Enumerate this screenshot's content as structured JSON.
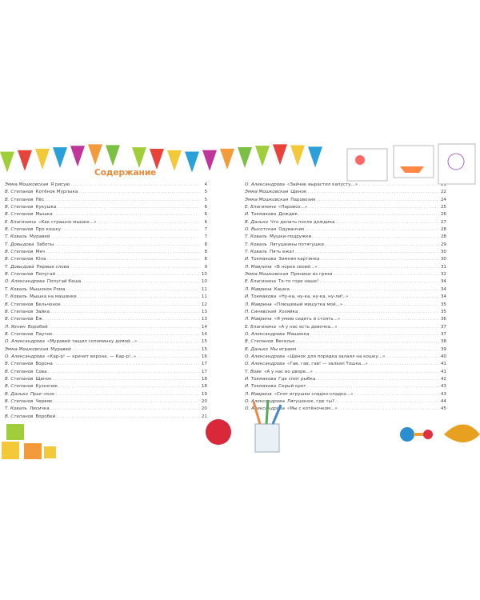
{
  "title": "Содержание",
  "left": [
    {
      "author": "Эмма Мошковская",
      "work": "Я рисую",
      "page": "4"
    },
    {
      "author": "В. Степанов",
      "work": "Котёнок Мурлыка",
      "page": "5"
    },
    {
      "author": "В. Степанов",
      "work": "Пёс",
      "page": "5"
    },
    {
      "author": "В. Степанов",
      "work": "Кукушка",
      "page": "6"
    },
    {
      "author": "В. Степанов",
      "work": "Мышка",
      "page": "6"
    },
    {
      "author": "Е. Благинина",
      "work": "«Как страшно мышке...»",
      "page": "6"
    },
    {
      "author": "В. Степанов",
      "work": "Про кошку",
      "page": "7"
    },
    {
      "author": "Т. Коваль",
      "work": "Муравей",
      "page": "7"
    },
    {
      "author": "Т. Довыдова",
      "work": "Заботы",
      "page": "8"
    },
    {
      "author": "В. Степанов",
      "work": "Мяч",
      "page": "8"
    },
    {
      "author": "В. Степанов",
      "work": "Юла",
      "page": "8"
    },
    {
      "author": "Т. Довыдова",
      "work": "Первые слова",
      "page": "9"
    },
    {
      "author": "В. Степанов",
      "work": "Попугай",
      "page": "10"
    },
    {
      "author": "О. Александрова",
      "work": "Попугай Кеша",
      "page": "10"
    },
    {
      "author": "Т. Коваль",
      "work": "Мышонок Рома",
      "page": "11"
    },
    {
      "author": "Т. Коваль",
      "work": "Мышка на машинке",
      "page": "11"
    },
    {
      "author": "В. Степанов",
      "work": "Бельчонок",
      "page": "12"
    },
    {
      "author": "В. Степанов",
      "work": "Зайка",
      "page": "13"
    },
    {
      "author": "В. Степанов",
      "work": "Ёж",
      "page": "13"
    },
    {
      "author": "Л. Яхнин",
      "work": "Воробей",
      "page": "14"
    },
    {
      "author": "В. Степанов",
      "work": "Паучок",
      "page": "14"
    },
    {
      "author": "О. Александрова",
      "work": "«Муравей тащил соломинку домой...»",
      "page": "15"
    },
    {
      "author": "Эмма Мошковская",
      "work": "Муравей",
      "page": "15"
    },
    {
      "author": "О. Александрова",
      "work": "«Кар-р! — кричит ворона. — Кар-р!..»",
      "page": "16"
    },
    {
      "author": "В. Степанов",
      "work": "Ворона",
      "page": "17"
    },
    {
      "author": "В. Степанов",
      "work": "Сова",
      "page": "17"
    },
    {
      "author": "В. Степанов",
      "work": "Щенок",
      "page": "18"
    },
    {
      "author": "В. Степанов",
      "work": "Кузнечик",
      "page": "18"
    },
    {
      "author": "В. Данько",
      "work": "Прыг-скок",
      "page": "19"
    },
    {
      "author": "В. Степанов",
      "work": "Червяк",
      "page": "20"
    },
    {
      "author": "Т. Коваль",
      "work": "Лисичка",
      "page": "20"
    },
    {
      "author": "В. Степанов",
      "work": "Воробей",
      "page": "21"
    }
  ],
  "right": [
    {
      "author": "О. Александрова",
      "work": "«Зайчик вырастил капусту...»",
      "page": "21"
    },
    {
      "author": "Эмма Мошковская",
      "work": "Щенок",
      "page": "22"
    },
    {
      "author": "Эмма Мошковская",
      "work": "Паровозик",
      "page": "24"
    },
    {
      "author": "Е. Благинина",
      "work": "«Паровоз...»",
      "page": "25"
    },
    {
      "author": "И. Токмакова",
      "work": "Дождик",
      "page": "26"
    },
    {
      "author": "В. Данько",
      "work": "Что делать после дождика",
      "page": "27"
    },
    {
      "author": "О. Высотская",
      "work": "Одуванчик",
      "page": "28"
    },
    {
      "author": "Т. Коваль",
      "work": "Мушки-подружки",
      "page": "28"
    },
    {
      "author": "Т. Коваль",
      "work": "Лягушкины потягушки",
      "page": "29"
    },
    {
      "author": "Т. Коваль",
      "work": "Пять ежат",
      "page": "30"
    },
    {
      "author": "И. Токмакова",
      "work": "Зимняя картинка",
      "page": "30"
    },
    {
      "author": "Л. Мавրина",
      "work": "«В норке своей...»",
      "page": "31"
    },
    {
      "author": "Эмма Мошковская",
      "work": "Пряники из грязи",
      "page": "32"
    },
    {
      "author": "Е. Благинина",
      "work": "То-то горе наше!",
      "page": "34"
    },
    {
      "author": "Л. Маврина",
      "work": "Кашка",
      "page": "34"
    },
    {
      "author": "И. Токмакова",
      "work": "«Ну-ка, ну-ка, ну-ка, ну-ли!..»",
      "page": "34"
    },
    {
      "author": "Л. Маврина",
      "work": "«Плюшевый мишутка мой...»",
      "page": "35"
    },
    {
      "author": "П. Синявский",
      "work": "Хозяйка",
      "page": "35"
    },
    {
      "author": "Л. Маврина",
      "work": "«Я умею сидеть и стоять...»",
      "page": "36"
    },
    {
      "author": "Е. Благинина",
      "work": "«А у нас есть девочка...»",
      "page": "37"
    },
    {
      "author": "О. Александрова",
      "work": "Машинка",
      "page": "37"
    },
    {
      "author": "В. Степанов",
      "work": "Веселье",
      "page": "38"
    },
    {
      "author": "В. Данько",
      "work": "Мы играем",
      "page": "39"
    },
    {
      "author": "О. Александрова",
      "work": "«Щенок для порядка залаял на кошку...»",
      "page": "40"
    },
    {
      "author": "О. Александрова",
      "work": "«Гав, гав, гав! — залаял Тошка...»",
      "page": "41"
    },
    {
      "author": "Т. Вове",
      "work": "«А у нас во дворе...»",
      "page": "41"
    },
    {
      "author": "И. Токмакова",
      "work": "Где спит рыбка",
      "page": "42"
    },
    {
      "author": "И. Токмакова",
      "work": "Серый крот",
      "page": "43"
    },
    {
      "author": "Л. Маврина",
      "work": "«Спят игрушки сладко-сладко...»",
      "page": "43"
    },
    {
      "author": "О. Александрова",
      "work": "Лягушонок, где ты?",
      "page": "44"
    },
    {
      "author": "О. Александрова",
      "work": "«Мы с котёночком...»",
      "page": "45"
    }
  ],
  "colors": {
    "title": "#e8893a",
    "text": "#444444"
  }
}
